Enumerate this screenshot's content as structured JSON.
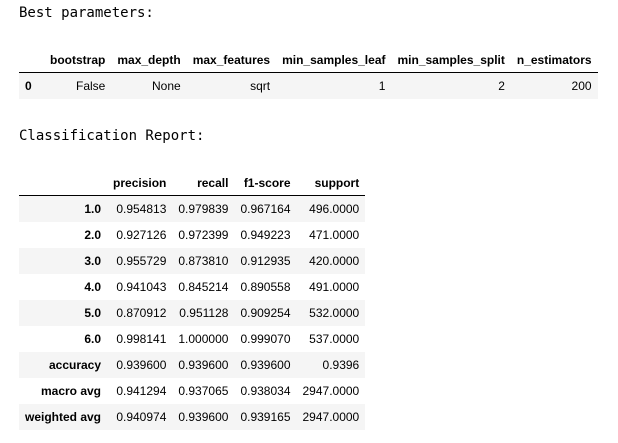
{
  "best_params": {
    "heading": "Best parameters:",
    "columns": [
      "bootstrap",
      "max_depth",
      "max_features",
      "min_samples_leaf",
      "min_samples_split",
      "n_estimators"
    ],
    "rows": [
      {
        "index": "0",
        "cells": [
          "False",
          "None",
          "sqrt",
          "1",
          "2",
          "200"
        ]
      }
    ]
  },
  "report": {
    "heading": "Classification Report:",
    "columns": [
      "precision",
      "recall",
      "f1-score",
      "support"
    ],
    "rows": [
      {
        "index": "1.0",
        "cells": [
          "0.954813",
          "0.979839",
          "0.967164",
          "496.0000"
        ]
      },
      {
        "index": "2.0",
        "cells": [
          "0.927126",
          "0.972399",
          "0.949223",
          "471.0000"
        ]
      },
      {
        "index": "3.0",
        "cells": [
          "0.955729",
          "0.873810",
          "0.912935",
          "420.0000"
        ]
      },
      {
        "index": "4.0",
        "cells": [
          "0.941043",
          "0.845214",
          "0.890558",
          "491.0000"
        ]
      },
      {
        "index": "5.0",
        "cells": [
          "0.870912",
          "0.951128",
          "0.909254",
          "532.0000"
        ]
      },
      {
        "index": "6.0",
        "cells": [
          "0.998141",
          "1.000000",
          "0.999070",
          "537.0000"
        ]
      },
      {
        "index": "accuracy",
        "cells": [
          "0.939600",
          "0.939600",
          "0.939600",
          "0.9396"
        ]
      },
      {
        "index": "macro avg",
        "cells": [
          "0.941294",
          "0.937065",
          "0.938034",
          "2947.0000"
        ]
      },
      {
        "index": "weighted avg",
        "cells": [
          "0.940974",
          "0.939600",
          "0.939165",
          "2947.0000"
        ]
      }
    ]
  }
}
